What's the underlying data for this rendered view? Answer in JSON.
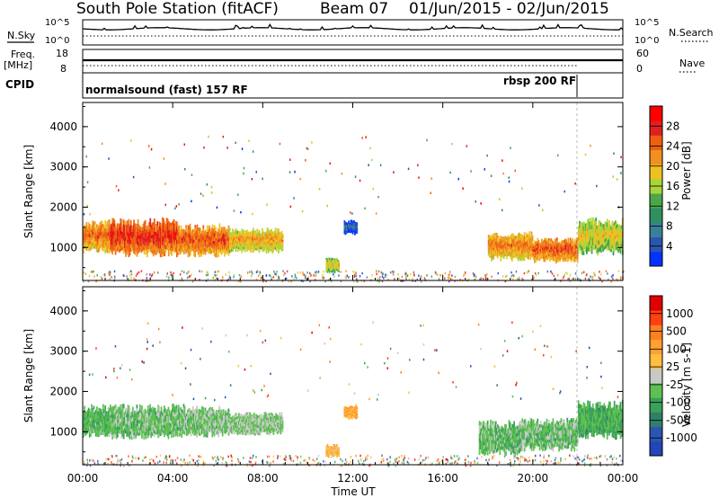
{
  "header": {
    "station": "South Pole Station (fitACF)",
    "beam": "Beam 07",
    "date_range": "01/Jun/2015 - 02/Jun/2015"
  },
  "noise_panel": {
    "left_label": "N.Sky",
    "right_label": "N.Search",
    "left_ticks": [
      "10^5",
      "10^0"
    ],
    "right_ticks": [
      "10^5",
      "10^0"
    ]
  },
  "freq_panel": {
    "left_label_1": "Freq.",
    "left_label_2": "[MHz]",
    "right_label": "Nave",
    "left_ticks": [
      "18",
      "8"
    ],
    "right_ticks": [
      "60",
      "0"
    ]
  },
  "cpid_panel": {
    "label": "CPID",
    "modes": [
      {
        "text": "normalsound (fast) 157 RF",
        "start": 0
      },
      {
        "text": "rbsp 200 RF",
        "start": 22
      }
    ]
  },
  "colors": {
    "power_scale": [
      "#0033ff",
      "#2a55b0",
      "#3a7f9a",
      "#2f8f60",
      "#4aa84a",
      "#a6d63a",
      "#f0c020",
      "#f09020",
      "#ee6010",
      "#e02020",
      "#ff0000"
    ],
    "velocity_scale": [
      "#e00000",
      "#ff4010",
      "#ff8020",
      "#ffa030",
      "#ffbe40",
      "#c8c8c8",
      "#5dc050",
      "#3aa05a",
      "#2f7f6a",
      "#2a55b0",
      "#2246b8"
    ]
  },
  "chart_data": [
    {
      "type": "heatmap",
      "name": "Power",
      "ylabel": "Slant Range [km]",
      "yticks": [
        1000,
        2000,
        3000,
        4000
      ],
      "ylim": [
        180,
        4600
      ],
      "xlim": [
        0,
        24
      ],
      "colorbar_label": "Power [dB]",
      "colorbar_ticks": [
        "4",
        "8",
        "12",
        "16",
        "20",
        "24",
        "28"
      ],
      "colorbar_range": [
        0,
        30
      ],
      "regions": [
        {
          "t": [
            0.0,
            1.2
          ],
          "r": [
            850,
            1700
          ],
          "level": 23
        },
        {
          "t": [
            1.2,
            4.2
          ],
          "r": [
            750,
            1750
          ],
          "level": 26
        },
        {
          "t": [
            4.2,
            6.5
          ],
          "r": [
            750,
            1600
          ],
          "level": 24
        },
        {
          "t": [
            6.5,
            8.9
          ],
          "r": [
            850,
            1500
          ],
          "level": 20
        },
        {
          "t": [
            10.8,
            11.4
          ],
          "r": [
            350,
            750
          ],
          "level": 18
        },
        {
          "t": [
            11.6,
            12.2
          ],
          "r": [
            1300,
            1700
          ],
          "level": 6
        },
        {
          "t": [
            18.0,
            20.0
          ],
          "r": [
            650,
            1400
          ],
          "level": 22
        },
        {
          "t": [
            20.0,
            22.0
          ],
          "r": [
            600,
            1250
          ],
          "level": 24
        },
        {
          "t": [
            22.0,
            24.0
          ],
          "r": [
            800,
            1750
          ],
          "level": 18
        }
      ]
    },
    {
      "type": "heatmap",
      "name": "Velocity",
      "ylabel": "Slant Range [km]",
      "yticks": [
        1000,
        2000,
        3000,
        4000
      ],
      "ylim": [
        180,
        4600
      ],
      "xlim": [
        0,
        24
      ],
      "colorbar_label": "Velocity [m s-1]",
      "colorbar_ticks": [
        "1000",
        "500",
        "100",
        "25",
        "-25",
        "-100",
        "-500",
        "-1000"
      ],
      "colorbar_range": [
        -1200,
        1200
      ],
      "regions": [
        {
          "t": [
            0.0,
            1.2
          ],
          "r": [
            850,
            1700
          ],
          "level": -300
        },
        {
          "t": [
            1.2,
            4.5
          ],
          "r": [
            800,
            1700
          ],
          "level": -200
        },
        {
          "t": [
            4.5,
            6.5
          ],
          "r": [
            850,
            1650
          ],
          "level": -150
        },
        {
          "t": [
            6.5,
            8.9
          ],
          "r": [
            900,
            1500
          ],
          "level": -120
        },
        {
          "t": [
            10.8,
            11.4
          ],
          "r": [
            350,
            700
          ],
          "level": 300
        },
        {
          "t": [
            11.6,
            12.2
          ],
          "r": [
            1300,
            1700
          ],
          "level": 400
        },
        {
          "t": [
            17.6,
            19.5
          ],
          "r": [
            400,
            1300
          ],
          "level": -250
        },
        {
          "t": [
            19.5,
            22.0
          ],
          "r": [
            500,
            1350
          ],
          "level": -200
        },
        {
          "t": [
            22.0,
            24.0
          ],
          "r": [
            800,
            1800
          ],
          "level": -350
        }
      ]
    }
  ],
  "x_axis": {
    "ticks": [
      "00:00",
      "04:00",
      "08:00",
      "12:00",
      "16:00",
      "20:00",
      "00:00"
    ],
    "tick_hours": [
      0,
      4,
      8,
      12,
      16,
      20,
      24
    ],
    "label": "Time UT"
  }
}
